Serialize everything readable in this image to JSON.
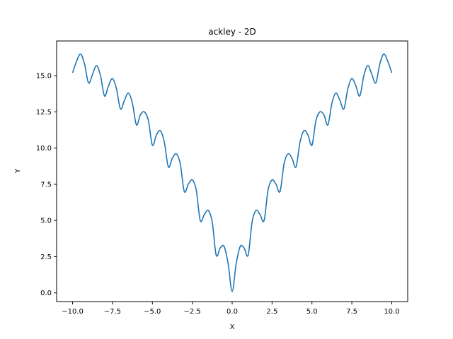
{
  "chart_data": {
    "type": "line",
    "title": "ackley - 2D",
    "xlabel": "X",
    "ylabel": "Y",
    "xlim": [
      -11.0,
      11.0
    ],
    "ylim": [
      -0.6,
      17.4
    ],
    "xticks": [
      -10.0,
      -7.5,
      -5.0,
      -2.5,
      0.0,
      2.5,
      5.0,
      7.5,
      10.0
    ],
    "xtick_labels": [
      "−10.0",
      "−7.5",
      "−5.0",
      "−2.5",
      "0.0",
      "2.5",
      "5.0",
      "7.5",
      "10.0"
    ],
    "yticks": [
      0.0,
      2.5,
      5.0,
      7.5,
      10.0,
      12.5,
      15.0
    ],
    "ytick_labels": [
      "0.0",
      "2.5",
      "5.0",
      "7.5",
      "10.0",
      "12.5",
      "15.0"
    ],
    "grid": false,
    "series": [
      {
        "color": "#1f77b4",
        "x": [
          -10.0,
          -9.75,
          -9.5,
          -9.25,
          -9.0,
          -8.75,
          -8.5,
          -8.25,
          -8.0,
          -7.75,
          -7.5,
          -7.25,
          -7.0,
          -6.75,
          -6.5,
          -6.25,
          -6.0,
          -5.75,
          -5.5,
          -5.25,
          -5.0,
          -4.75,
          -4.5,
          -4.25,
          -4.0,
          -3.75,
          -3.5,
          -3.25,
          -3.0,
          -2.75,
          -2.5,
          -2.25,
          -2.0,
          -1.75,
          -1.5,
          -1.25,
          -1.0,
          -0.75,
          -0.5,
          -0.25,
          0.0,
          0.25,
          0.5,
          0.75,
          1.0,
          1.25,
          1.5,
          1.75,
          2.0,
          2.25,
          2.5,
          2.75,
          3.0,
          3.25,
          3.5,
          3.75,
          4.0,
          4.25,
          4.5,
          4.75,
          5.0,
          5.25,
          5.5,
          5.75,
          6.0,
          6.25,
          6.5,
          6.75,
          7.0,
          7.25,
          7.5,
          7.75,
          8.0,
          8.25,
          8.5,
          8.75,
          9.0,
          9.25,
          9.5,
          9.75,
          10.0
        ],
        "y": [
          15.2,
          16.0,
          16.5,
          15.8,
          14.5,
          15.1,
          15.7,
          15.0,
          13.6,
          14.3,
          14.8,
          14.1,
          12.7,
          13.3,
          13.8,
          13.1,
          11.6,
          12.3,
          12.5,
          11.9,
          10.2,
          10.9,
          11.2,
          10.4,
          8.7,
          9.3,
          9.6,
          8.9,
          7.0,
          7.5,
          7.8,
          7.1,
          5.0,
          5.4,
          5.7,
          4.9,
          2.6,
          3.1,
          3.2,
          2.0,
          0.1,
          2.0,
          3.2,
          3.1,
          2.6,
          4.9,
          5.7,
          5.4,
          5.0,
          7.1,
          7.8,
          7.5,
          7.0,
          8.9,
          9.6,
          9.3,
          8.7,
          10.4,
          11.2,
          10.9,
          10.2,
          11.9,
          12.5,
          12.3,
          11.6,
          13.1,
          13.8,
          13.3,
          12.7,
          14.1,
          14.8,
          14.3,
          13.6,
          15.0,
          15.7,
          15.1,
          14.5,
          15.8,
          16.5,
          16.0,
          15.2
        ]
      }
    ]
  }
}
